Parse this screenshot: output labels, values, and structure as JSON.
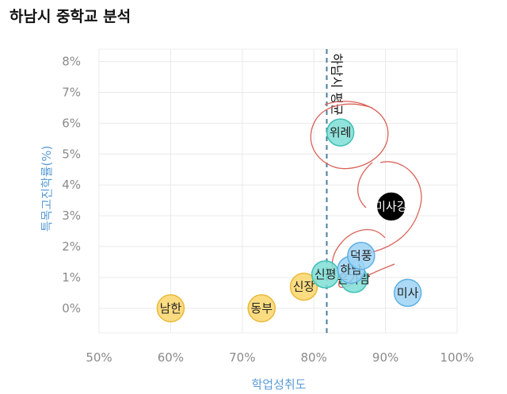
{
  "chart_data": {
    "type": "scatter",
    "title": "하남시 중학교 분석",
    "xlabel": "학업성취도",
    "ylabel": "특목고진학률(%)",
    "xlim": [
      50,
      100
    ],
    "ylim": [
      -0.8,
      8.4
    ],
    "x_ticks": [
      "50%",
      "60%",
      "70%",
      "80%",
      "90%",
      "100%"
    ],
    "y_ticks": [
      "0%",
      "1%",
      "2%",
      "3%",
      "4%",
      "5%",
      "6%",
      "7%",
      "8%"
    ],
    "grid": true,
    "reference_line": {
      "x": 81.8,
      "label": "하남시 평균"
    },
    "points": [
      {
        "name": "남한",
        "x": 60,
        "y": 0.0,
        "color": "#fbd66b"
      },
      {
        "name": "동부",
        "x": 72.7,
        "y": 0.0,
        "color": "#fbd66b"
      },
      {
        "name": "신장",
        "x": 78.6,
        "y": 0.7,
        "color": "#fbd66b"
      },
      {
        "name": "신평",
        "x": 81.6,
        "y": 1.1,
        "color": "#7fded6"
      },
      {
        "name": "은가람",
        "x": 85.6,
        "y": 0.95,
        "color": "#7fded6"
      },
      {
        "name": "하남",
        "x": 85.2,
        "y": 1.25,
        "color": "#9dd3f5"
      },
      {
        "name": "덕풍",
        "x": 86.6,
        "y": 1.7,
        "color": "#9dd3f5"
      },
      {
        "name": "미사",
        "x": 93.1,
        "y": 0.5,
        "color": "#9dd3f5"
      },
      {
        "name": "위례",
        "x": 83.7,
        "y": 5.7,
        "color": "#7fded6"
      },
      {
        "name": "미사강",
        "x": 90.8,
        "y": 3.3,
        "color": "#000000"
      }
    ]
  }
}
